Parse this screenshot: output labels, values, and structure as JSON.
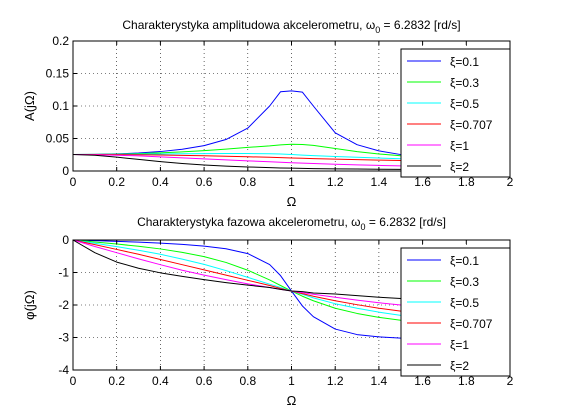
{
  "chart_data": [
    {
      "type": "line",
      "title": "Charakterystyka amplitudowa akcelerometru, ω",
      "title_sub": "0",
      "title_tail": " = 6.2832 [rd/s]",
      "xlabel": "Ω",
      "ylabel": "A(jΩ)",
      "xlim": [
        0,
        2
      ],
      "ylim": [
        0,
        0.2
      ],
      "xticks": [
        0,
        0.2,
        0.4,
        0.6,
        0.8,
        1,
        1.2,
        1.4,
        1.6,
        1.8,
        2
      ],
      "xtick_labels": [
        "0",
        "0.2",
        "0.4",
        "0.6",
        "0.8",
        "1",
        "1.2",
        "1.4",
        "1.6",
        "1.8",
        "2"
      ],
      "yticks": [
        0,
        0.05,
        0.1,
        0.15,
        0.2
      ],
      "ytick_labels": [
        "0",
        "0.05",
        "0.1",
        "0.15",
        "0.2"
      ],
      "grid": true,
      "legend": "top-right",
      "x": [
        0,
        0.1,
        0.2,
        0.3,
        0.4,
        0.5,
        0.6,
        0.7,
        0.8,
        0.9,
        0.95,
        1.0,
        1.05,
        1.1,
        1.2,
        1.3,
        1.4,
        1.5,
        1.6,
        1.7,
        1.8,
        1.9,
        2.0
      ],
      "series": [
        {
          "name": "ξ=0.1",
          "color": "#0000ff",
          "values": [
            0.0253,
            0.0256,
            0.0263,
            0.0277,
            0.0299,
            0.0334,
            0.039,
            0.0484,
            0.066,
            0.1,
            0.122,
            0.1233,
            0.1213,
            0.1,
            0.0588,
            0.0405,
            0.031,
            0.0253,
            0.0216,
            0.019,
            0.0172,
            0.0158,
            0.0148
          ]
        },
        {
          "name": "ξ=0.3",
          "color": "#00ff00",
          "values": [
            0.0253,
            0.0255,
            0.026,
            0.0268,
            0.0279,
            0.0294,
            0.0314,
            0.0337,
            0.0363,
            0.0386,
            0.0402,
            0.0411,
            0.0408,
            0.0394,
            0.0346,
            0.0298,
            0.0262,
            0.0234,
            0.0212,
            0.0195,
            0.0182,
            0.0171,
            0.0162
          ]
        },
        {
          "name": "ξ=0.5",
          "color": "#00ffff",
          "values": [
            0.0253,
            0.0254,
            0.0256,
            0.0259,
            0.0262,
            0.0265,
            0.0268,
            0.0269,
            0.0269,
            0.0266,
            0.0262,
            0.0253,
            0.0245,
            0.0236,
            0.0224,
            0.0211,
            0.0199,
            0.0189,
            0.018,
            0.0172,
            0.0166,
            0.016,
            0.0155
          ]
        },
        {
          "name": "ξ=0.707",
          "color": "#ff0000",
          "values": [
            0.0253,
            0.0253,
            0.0252,
            0.0249,
            0.0246,
            0.0241,
            0.0234,
            0.0227,
            0.0219,
            0.0211,
            0.0206,
            0.0201,
            0.0196,
            0.0191,
            0.0183,
            0.0175,
            0.0168,
            0.0162,
            0.0156,
            0.0151,
            0.0146,
            0.0142,
            0.0138
          ]
        },
        {
          "name": "ξ=1",
          "color": "#ff00ff",
          "values": [
            0.0253,
            0.025,
            0.0243,
            0.0232,
            0.0218,
            0.0202,
            0.0186,
            0.0171,
            0.0156,
            0.0142,
            0.0135,
            0.0127,
            0.0121,
            0.0115,
            0.0104,
            0.0094,
            0.0086,
            0.0079,
            0.0072,
            0.0066,
            0.0061,
            0.0057,
            0.0053
          ]
        },
        {
          "name": "ξ=2",
          "color": "#000000",
          "values": [
            0.0253,
            0.0242,
            0.0213,
            0.0178,
            0.0144,
            0.0115,
            0.0093,
            0.0075,
            0.0062,
            0.0052,
            0.0047,
            0.0044,
            0.004,
            0.0037,
            0.0033,
            0.003,
            0.0027,
            0.0025,
            0.0023,
            0.0021,
            0.0019,
            0.0018,
            0.0016
          ]
        }
      ]
    },
    {
      "type": "line",
      "title": "Charakterystyka fazowa akcelerometru, ω",
      "title_sub": "0",
      "title_tail": " = 6.2832 [rd/s]",
      "xlabel": "Ω",
      "ylabel": "φ(jΩ)",
      "xlim": [
        0,
        2
      ],
      "ylim": [
        -4,
        0
      ],
      "xticks": [
        0,
        0.2,
        0.4,
        0.6,
        0.8,
        1,
        1.2,
        1.4,
        1.6,
        1.8,
        2
      ],
      "xtick_labels": [
        "0",
        "0.2",
        "0.4",
        "0.6",
        "0.8",
        "1",
        "1.2",
        "1.4",
        "1.6",
        "1.8",
        "2"
      ],
      "yticks": [
        -4,
        -3,
        -2,
        -1,
        0
      ],
      "ytick_labels": [
        "-4",
        "-3",
        "-2",
        "-1",
        "0"
      ],
      "grid": true,
      "legend": "top-right",
      "x": [
        0,
        0.1,
        0.2,
        0.3,
        0.4,
        0.5,
        0.6,
        0.7,
        0.8,
        0.9,
        0.95,
        1.0,
        1.05,
        1.1,
        1.2,
        1.3,
        1.4,
        1.5,
        1.6,
        1.7,
        1.8,
        1.9,
        2.0
      ],
      "series": [
        {
          "name": "ξ=0.1",
          "color": "#0000ff",
          "values": [
            0,
            -0.02,
            -0.042,
            -0.066,
            -0.095,
            -0.133,
            -0.187,
            -0.268,
            -0.418,
            -0.756,
            -1.097,
            -1.5708,
            -2.03,
            -2.36,
            -2.74,
            -2.91,
            -2.98,
            -3.02,
            -3.05,
            -3.07,
            -3.08,
            -3.09,
            -3.1
          ]
        },
        {
          "name": "ξ=0.3",
          "color": "#00ff00",
          "values": [
            0,
            -0.061,
            -0.124,
            -0.193,
            -0.275,
            -0.38,
            -0.512,
            -0.69,
            -0.93,
            -1.23,
            -1.4,
            -1.5708,
            -1.73,
            -1.87,
            -2.1,
            -2.26,
            -2.38,
            -2.47,
            -2.54,
            -2.59,
            -2.63,
            -2.66,
            -2.69
          ]
        },
        {
          "name": "ξ=0.5",
          "color": "#00ffff",
          "values": [
            0,
            -0.1,
            -0.205,
            -0.317,
            -0.44,
            -0.588,
            -0.75,
            -0.94,
            -1.15,
            -1.36,
            -1.46,
            -1.5708,
            -1.67,
            -1.78,
            -1.96,
            -2.1,
            -2.22,
            -2.32,
            -2.4,
            -2.46,
            -2.51,
            -2.55,
            -2.59
          ]
        },
        {
          "name": "ξ=0.707",
          "color": "#ff0000",
          "values": [
            0,
            -0.142,
            -0.29,
            -0.44,
            -0.6,
            -0.76,
            -0.92,
            -1.08,
            -1.24,
            -1.4,
            -1.49,
            -1.5708,
            -1.65,
            -1.73,
            -1.87,
            -1.99,
            -2.1,
            -2.19,
            -2.27,
            -2.34,
            -2.4,
            -2.45,
            -2.5
          ]
        },
        {
          "name": "ξ=1",
          "color": "#ff00ff",
          "values": [
            0,
            -0.2,
            -0.39,
            -0.58,
            -0.76,
            -0.93,
            -1.08,
            -1.22,
            -1.35,
            -1.46,
            -1.52,
            -1.5708,
            -1.62,
            -1.67,
            -1.76,
            -1.85,
            -1.93,
            -2.0,
            -2.07,
            -2.13,
            -2.19,
            -2.24,
            -2.28
          ]
        },
        {
          "name": "ξ=2",
          "color": "#000000",
          "values": [
            0,
            -0.39,
            -0.68,
            -0.87,
            -1.01,
            -1.12,
            -1.22,
            -1.31,
            -1.39,
            -1.46,
            -1.52,
            -1.5708,
            -1.59,
            -1.63,
            -1.66,
            -1.71,
            -1.76,
            -1.8,
            -1.83,
            -1.86,
            -1.89,
            -1.91,
            -1.93
          ]
        }
      ]
    }
  ]
}
